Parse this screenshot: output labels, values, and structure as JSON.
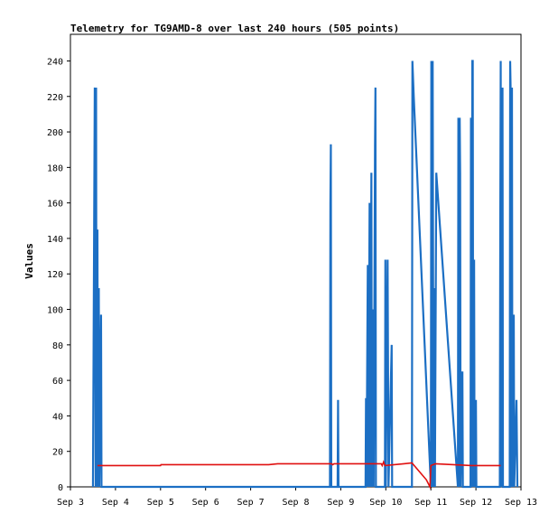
{
  "chart_data": {
    "type": "line",
    "title": "Telemetry for TG9AMD-8 over last 240 hours (505 points)",
    "xlabel": "",
    "ylabel": "Values",
    "grid": false,
    "legend": "none",
    "x_ticks": [
      "Sep 3",
      "Sep 4",
      "Sep 5",
      "Sep 6",
      "Sep 7",
      "Sep 8",
      "Sep 9",
      "Sep 10",
      "Sep 11",
      "Sep 12",
      "Sep 13"
    ],
    "y_ticks": [
      0,
      20,
      40,
      60,
      80,
      100,
      120,
      140,
      160,
      180,
      200,
      220,
      240
    ],
    "xlim": [
      0,
      10
    ],
    "ylim": [
      0,
      255
    ],
    "series": [
      {
        "color": "#1c6fc4",
        "points": [
          [
            0.5,
            0
          ],
          [
            0.54,
            225
          ],
          [
            0.56,
            0
          ],
          [
            0.57,
            225
          ],
          [
            0.58,
            0
          ],
          [
            0.6,
            145
          ],
          [
            0.61,
            0
          ],
          [
            0.63,
            112
          ],
          [
            0.64,
            0
          ],
          [
            0.68,
            97
          ],
          [
            0.69,
            0
          ],
          [
            5.76,
            0
          ],
          [
            5.77,
            160
          ],
          [
            5.78,
            193
          ],
          [
            5.79,
            0
          ],
          [
            5.93,
            0
          ],
          [
            5.94,
            49
          ],
          [
            5.95,
            0
          ],
          [
            6.55,
            0
          ],
          [
            6.56,
            50
          ],
          [
            6.57,
            0
          ],
          [
            6.6,
            125
          ],
          [
            6.61,
            0
          ],
          [
            6.64,
            160
          ],
          [
            6.65,
            0
          ],
          [
            6.68,
            177
          ],
          [
            6.69,
            0
          ],
          [
            6.72,
            100
          ],
          [
            6.73,
            0
          ],
          [
            6.76,
            192
          ],
          [
            6.77,
            225
          ],
          [
            6.78,
            0
          ],
          [
            6.98,
            0
          ],
          [
            6.99,
            128
          ],
          [
            7.0,
            0
          ],
          [
            7.04,
            128
          ],
          [
            7.05,
            65
          ],
          [
            7.06,
            0
          ],
          [
            7.13,
            80
          ],
          [
            7.14,
            0
          ],
          [
            7.58,
            0
          ],
          [
            7.59,
            240
          ],
          [
            7.62,
            220
          ],
          [
            8.0,
            0
          ],
          [
            8.01,
            240
          ],
          [
            8.03,
            0
          ],
          [
            8.04,
            240
          ],
          [
            8.05,
            112
          ],
          [
            8.06,
            0
          ],
          [
            8.08,
            112
          ],
          [
            8.09,
            0
          ],
          [
            8.12,
            177
          ],
          [
            8.6,
            0
          ],
          [
            8.61,
            208
          ],
          [
            8.62,
            0
          ],
          [
            8.64,
            208
          ],
          [
            8.65,
            177
          ],
          [
            8.66,
            0
          ],
          [
            8.7,
            65
          ],
          [
            8.71,
            0
          ],
          [
            8.88,
            0
          ],
          [
            8.89,
            208
          ],
          [
            8.9,
            0
          ],
          [
            8.92,
            240
          ],
          [
            8.93,
            240
          ],
          [
            8.94,
            0
          ],
          [
            8.96,
            128
          ],
          [
            8.97,
            0
          ],
          [
            9.0,
            49
          ],
          [
            9.01,
            0
          ],
          [
            9.53,
            0
          ],
          [
            9.54,
            145
          ],
          [
            9.55,
            240
          ],
          [
            9.56,
            0
          ],
          [
            9.58,
            112
          ],
          [
            9.59,
            225
          ],
          [
            9.6,
            0
          ],
          [
            9.75,
            0
          ],
          [
            9.76,
            240
          ],
          [
            9.77,
            225
          ],
          [
            9.78,
            0
          ],
          [
            9.8,
            225
          ],
          [
            9.81,
            0
          ],
          [
            9.84,
            97
          ],
          [
            9.85,
            0
          ],
          [
            9.9,
            49
          ],
          [
            9.92,
            0
          ]
        ]
      },
      {
        "color": "#e01010",
        "points": [
          [
            0.6,
            12
          ],
          [
            2.0,
            12
          ],
          [
            2.01,
            12.5
          ],
          [
            4.4,
            12.5
          ],
          [
            4.6,
            13
          ],
          [
            5.8,
            13
          ],
          [
            5.82,
            12.5
          ],
          [
            5.85,
            13
          ],
          [
            6.9,
            13
          ],
          [
            6.92,
            12
          ],
          [
            6.95,
            14
          ],
          [
            6.98,
            12
          ],
          [
            7.4,
            13
          ],
          [
            7.58,
            13.5
          ],
          [
            7.9,
            4
          ],
          [
            7.98,
            0
          ],
          [
            8.0,
            12
          ],
          [
            8.1,
            13
          ],
          [
            8.5,
            12.5
          ],
          [
            8.9,
            12
          ],
          [
            9.3,
            12
          ],
          [
            9.55,
            12
          ]
        ]
      }
    ]
  }
}
